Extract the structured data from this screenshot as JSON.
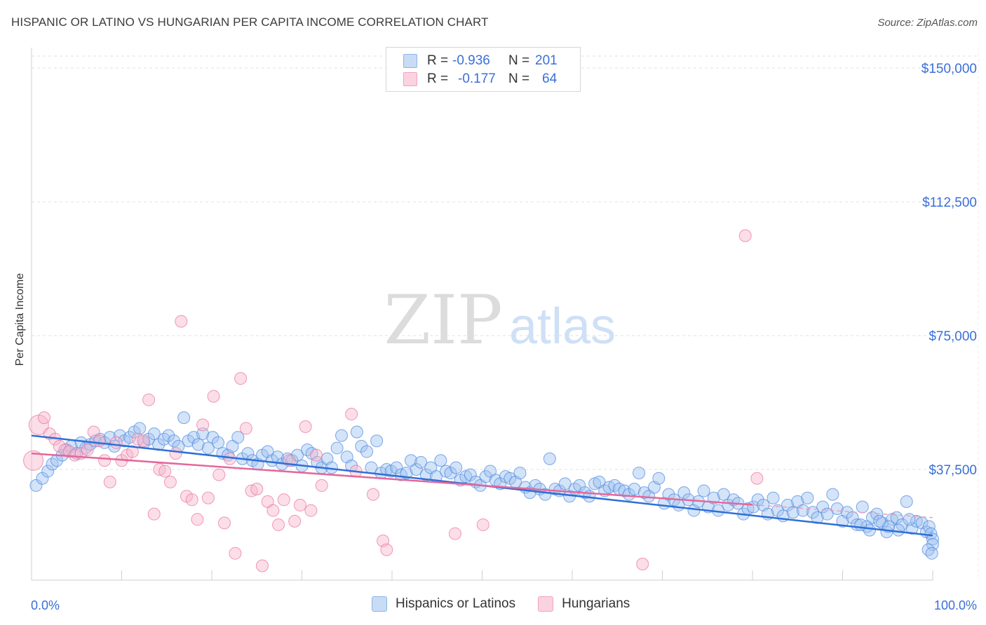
{
  "title": "HISPANIC OR LATINO VS HUNGARIAN PER CAPITA INCOME CORRELATION CHART",
  "source": "Source: ZipAtlas.com",
  "watermark": {
    "zip": "ZIP",
    "atlas": "atlas"
  },
  "legend_top": [
    {
      "r_label": "R =",
      "r_value": "-0.936",
      "n_label": "N =",
      "n_value": "201",
      "color": "#9ec1f0"
    },
    {
      "r_label": "R =",
      "r_value": "-0.177",
      "n_label": "N =",
      "n_value": "64",
      "color": "#f6b6cb"
    }
  ],
  "legend_bottom": [
    {
      "label": "Hispanics or Latinos",
      "color": "#9ec1f0"
    },
    {
      "label": "Hungarians",
      "color": "#f6b6cb"
    }
  ],
  "chart_data": {
    "type": "scatter",
    "title": "HISPANIC OR LATINO VS HUNGARIAN PER CAPITA INCOME CORRELATION CHART",
    "xlabel": "",
    "ylabel": "Per Capita Income",
    "x_tick_labels": [
      "0.0%",
      "100.0%"
    ],
    "y_tick_labels": [
      "$37,500",
      "$75,000",
      "$112,500",
      "$150,000"
    ],
    "y_ticks": [
      37500,
      75000,
      112500,
      150000
    ],
    "xlim": [
      0,
      100
    ],
    "ylim": [
      0,
      155000
    ],
    "grid": true,
    "series": [
      {
        "name": "Hispanics or Latinos",
        "color": "#4a86e0",
        "fill": "#9ec1f0",
        "trend": {
          "x": [
            0,
            100
          ],
          "y": [
            47000,
            19000
          ]
        },
        "points": [
          [
            0.5,
            33000
          ],
          [
            1.2,
            35000
          ],
          [
            1.8,
            37000
          ],
          [
            2.3,
            39000
          ],
          [
            2.8,
            40000
          ],
          [
            3.4,
            41500
          ],
          [
            3.9,
            43000
          ],
          [
            4.4,
            44000
          ],
          [
            5.0,
            42000
          ],
          [
            5.5,
            45000
          ],
          [
            6.0,
            43500
          ],
          [
            6.5,
            44500
          ],
          [
            7.1,
            45500
          ],
          [
            7.6,
            46000
          ],
          [
            8.1,
            45000
          ],
          [
            8.7,
            46500
          ],
          [
            9.2,
            44000
          ],
          [
            9.8,
            47000
          ],
          [
            10.3,
            45500
          ],
          [
            10.9,
            46500
          ],
          [
            11.4,
            48000
          ],
          [
            12.0,
            49000
          ],
          [
            12.5,
            45000
          ],
          [
            13.0,
            46000
          ],
          [
            13.6,
            47500
          ],
          [
            14.1,
            44500
          ],
          [
            14.7,
            46000
          ],
          [
            15.2,
            47000
          ],
          [
            15.8,
            45500
          ],
          [
            16.3,
            44000
          ],
          [
            16.9,
            52000
          ],
          [
            17.4,
            45500
          ],
          [
            18.0,
            46500
          ],
          [
            18.5,
            44500
          ],
          [
            19.0,
            47500
          ],
          [
            19.6,
            43500
          ],
          [
            20.1,
            46500
          ],
          [
            20.7,
            45000
          ],
          [
            21.2,
            42000
          ],
          [
            21.8,
            41500
          ],
          [
            22.3,
            44000
          ],
          [
            22.9,
            46500
          ],
          [
            23.4,
            40500
          ],
          [
            24.0,
            42000
          ],
          [
            24.5,
            40000
          ],
          [
            25.1,
            39000
          ],
          [
            25.6,
            41500
          ],
          [
            26.2,
            42500
          ],
          [
            26.7,
            40000
          ],
          [
            27.3,
            41000
          ],
          [
            27.8,
            39000
          ],
          [
            28.4,
            40500
          ],
          [
            28.9,
            40000
          ],
          [
            29.5,
            41500
          ],
          [
            30.0,
            38500
          ],
          [
            30.6,
            43000
          ],
          [
            31.1,
            42000
          ],
          [
            31.7,
            39500
          ],
          [
            32.2,
            38000
          ],
          [
            32.8,
            40500
          ],
          [
            33.3,
            38000
          ],
          [
            33.9,
            43500
          ],
          [
            34.4,
            47000
          ],
          [
            35.0,
            41000
          ],
          [
            35.5,
            38500
          ],
          [
            36.1,
            48000
          ],
          [
            36.6,
            44000
          ],
          [
            37.2,
            42500
          ],
          [
            37.7,
            38000
          ],
          [
            38.3,
            45500
          ],
          [
            38.8,
            36500
          ],
          [
            39.4,
            37500
          ],
          [
            39.9,
            37000
          ],
          [
            40.5,
            38000
          ],
          [
            41.0,
            36000
          ],
          [
            41.6,
            36500
          ],
          [
            42.1,
            40000
          ],
          [
            42.7,
            37500
          ],
          [
            43.2,
            39500
          ],
          [
            43.8,
            36000
          ],
          [
            44.3,
            38000
          ],
          [
            44.9,
            35500
          ],
          [
            45.4,
            40000
          ],
          [
            46.0,
            37000
          ],
          [
            46.5,
            36500
          ],
          [
            47.1,
            38000
          ],
          [
            47.6,
            34500
          ],
          [
            48.2,
            35500
          ],
          [
            48.7,
            36000
          ],
          [
            49.3,
            34000
          ],
          [
            49.8,
            33000
          ],
          [
            50.4,
            35500
          ],
          [
            50.9,
            37000
          ],
          [
            51.5,
            34500
          ],
          [
            52.0,
            33500
          ],
          [
            52.6,
            35500
          ],
          [
            53.1,
            35000
          ],
          [
            53.7,
            34000
          ],
          [
            54.2,
            36500
          ],
          [
            54.8,
            32500
          ],
          [
            55.3,
            31000
          ],
          [
            55.9,
            33000
          ],
          [
            56.4,
            32000
          ],
          [
            57.0,
            30500
          ],
          [
            57.5,
            40500
          ],
          [
            58.1,
            32000
          ],
          [
            58.6,
            31500
          ],
          [
            59.2,
            33500
          ],
          [
            59.7,
            30000
          ],
          [
            60.3,
            32000
          ],
          [
            60.8,
            33000
          ],
          [
            61.4,
            31000
          ],
          [
            61.9,
            30000
          ],
          [
            62.5,
            33500
          ],
          [
            63.0,
            34000
          ],
          [
            63.6,
            31500
          ],
          [
            64.1,
            32500
          ],
          [
            64.7,
            33000
          ],
          [
            65.2,
            32000
          ],
          [
            65.8,
            31500
          ],
          [
            66.3,
            30500
          ],
          [
            66.9,
            32000
          ],
          [
            67.4,
            36500
          ],
          [
            68.0,
            31000
          ],
          [
            68.5,
            30000
          ],
          [
            69.1,
            32500
          ],
          [
            69.6,
            35000
          ],
          [
            70.2,
            28000
          ],
          [
            70.7,
            30500
          ],
          [
            71.3,
            29000
          ],
          [
            71.8,
            27500
          ],
          [
            72.4,
            31000
          ],
          [
            72.9,
            29000
          ],
          [
            73.5,
            26000
          ],
          [
            74.0,
            28500
          ],
          [
            74.6,
            31500
          ],
          [
            75.1,
            27000
          ],
          [
            75.7,
            29500
          ],
          [
            76.2,
            26000
          ],
          [
            76.8,
            30500
          ],
          [
            77.3,
            27500
          ],
          [
            77.9,
            29000
          ],
          [
            78.4,
            28000
          ],
          [
            79.0,
            25000
          ],
          [
            79.5,
            26500
          ],
          [
            80.1,
            27000
          ],
          [
            80.6,
            29000
          ],
          [
            81.2,
            27500
          ],
          [
            81.7,
            25000
          ],
          [
            82.3,
            29500
          ],
          [
            82.8,
            26000
          ],
          [
            83.4,
            24500
          ],
          [
            83.9,
            27500
          ],
          [
            84.5,
            25500
          ],
          [
            85.0,
            28500
          ],
          [
            85.6,
            26000
          ],
          [
            86.1,
            29500
          ],
          [
            86.7,
            25500
          ],
          [
            87.2,
            24000
          ],
          [
            87.8,
            27000
          ],
          [
            88.3,
            25000
          ],
          [
            88.9,
            30500
          ],
          [
            89.4,
            26500
          ],
          [
            90.0,
            23000
          ],
          [
            90.5,
            25500
          ],
          [
            91.1,
            24000
          ],
          [
            91.6,
            22000
          ],
          [
            92.2,
            27000
          ],
          [
            92.7,
            21500
          ],
          [
            93.3,
            24000
          ],
          [
            93.8,
            25000
          ],
          [
            94.4,
            22500
          ],
          [
            94.9,
            20000
          ],
          [
            95.5,
            23500
          ],
          [
            96.0,
            24000
          ],
          [
            96.6,
            22000
          ],
          [
            97.1,
            28500
          ],
          [
            97.7,
            21000
          ],
          [
            98.2,
            23000
          ],
          [
            98.8,
            22500
          ],
          [
            99.3,
            20000
          ],
          [
            99.6,
            21500
          ],
          [
            99.8,
            19500
          ],
          [
            100.0,
            18000
          ],
          [
            100.0,
            16500
          ],
          [
            99.5,
            15000
          ],
          [
            99.9,
            14000
          ],
          [
            97.4,
            23500
          ],
          [
            96.2,
            20500
          ],
          [
            95.1,
            21500
          ],
          [
            94.1,
            23000
          ],
          [
            93.0,
            20500
          ],
          [
            92.0,
            22000
          ]
        ]
      },
      {
        "name": "Hungarians",
        "color": "#e8709a",
        "fill": "#f6b6cb",
        "trend": {
          "x": [
            0,
            100
          ],
          "y": [
            42000,
            24000
          ]
        },
        "points": [
          [
            0.2,
            40000
          ],
          [
            0.8,
            50000
          ],
          [
            1.4,
            52000
          ],
          [
            2.0,
            47500
          ],
          [
            2.6,
            46000
          ],
          [
            3.1,
            44000
          ],
          [
            3.7,
            43000
          ],
          [
            4.2,
            42500
          ],
          [
            4.8,
            41500
          ],
          [
            5.5,
            42000
          ],
          [
            6.2,
            43000
          ],
          [
            6.9,
            48000
          ],
          [
            7.5,
            45500
          ],
          [
            8.1,
            40000
          ],
          [
            8.7,
            34000
          ],
          [
            9.4,
            45000
          ],
          [
            10.0,
            40000
          ],
          [
            10.6,
            41500
          ],
          [
            11.2,
            42500
          ],
          [
            11.8,
            46000
          ],
          [
            12.4,
            45500
          ],
          [
            13.0,
            57000
          ],
          [
            13.6,
            25000
          ],
          [
            14.2,
            37500
          ],
          [
            14.8,
            37000
          ],
          [
            15.4,
            34000
          ],
          [
            16.0,
            42000
          ],
          [
            16.6,
            79000
          ],
          [
            17.2,
            30000
          ],
          [
            17.8,
            29000
          ],
          [
            18.4,
            23500
          ],
          [
            19.0,
            50000
          ],
          [
            19.6,
            29500
          ],
          [
            20.2,
            58000
          ],
          [
            20.8,
            36000
          ],
          [
            21.4,
            22500
          ],
          [
            22.0,
            40500
          ],
          [
            22.6,
            14000
          ],
          [
            23.2,
            63000
          ],
          [
            23.8,
            49000
          ],
          [
            24.4,
            31500
          ],
          [
            25.0,
            32000
          ],
          [
            25.6,
            10500
          ],
          [
            26.2,
            28500
          ],
          [
            26.8,
            26000
          ],
          [
            27.4,
            22000
          ],
          [
            28.0,
            29000
          ],
          [
            28.6,
            40000
          ],
          [
            29.2,
            23000
          ],
          [
            29.8,
            27500
          ],
          [
            30.4,
            49500
          ],
          [
            31.0,
            26000
          ],
          [
            31.6,
            41500
          ],
          [
            32.2,
            33000
          ],
          [
            36.0,
            37000
          ],
          [
            35.5,
            53000
          ],
          [
            37.9,
            30500
          ],
          [
            39.0,
            17500
          ],
          [
            39.4,
            15000
          ],
          [
            47.0,
            19500
          ],
          [
            50.1,
            22000
          ],
          [
            67.8,
            11000
          ],
          [
            79.2,
            103000
          ],
          [
            80.5,
            35000
          ]
        ]
      }
    ]
  }
}
